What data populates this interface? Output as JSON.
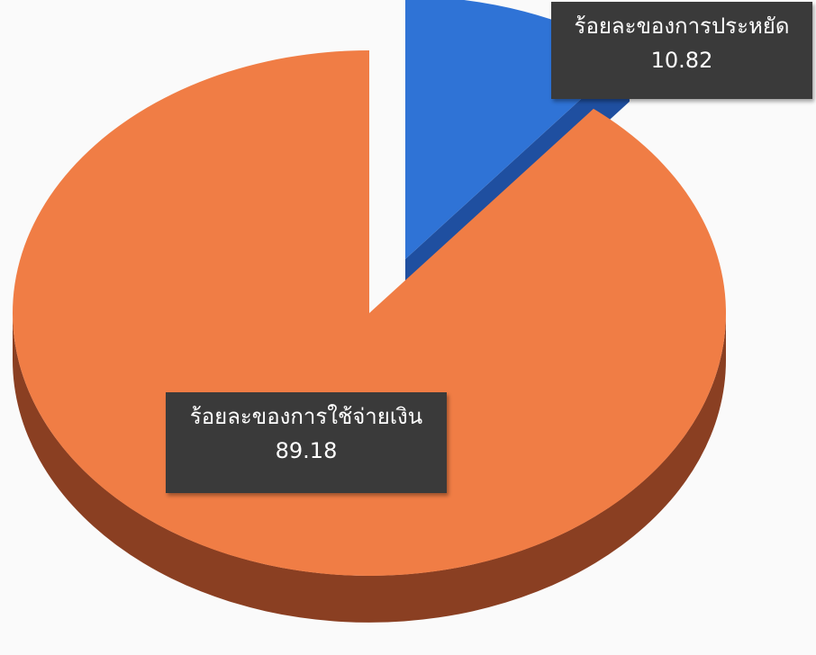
{
  "chart_data": {
    "type": "pie",
    "title": "",
    "slices": [
      {
        "name": "ร้อยละของการประหยัด",
        "value": 10.82,
        "value_label": "10.82",
        "color": "#2f73d6",
        "side_color": "#1f4fa0",
        "exploded": true
      },
      {
        "name": "ร้อยละของการใช้จ่ายเงิน",
        "value": 89.18,
        "value_label": "89.18",
        "color": "#f07d45",
        "side_color": "#8a3f22",
        "exploded": false
      }
    ],
    "style": "3d",
    "legend": "none",
    "data_labels": "category-name-and-value"
  }
}
